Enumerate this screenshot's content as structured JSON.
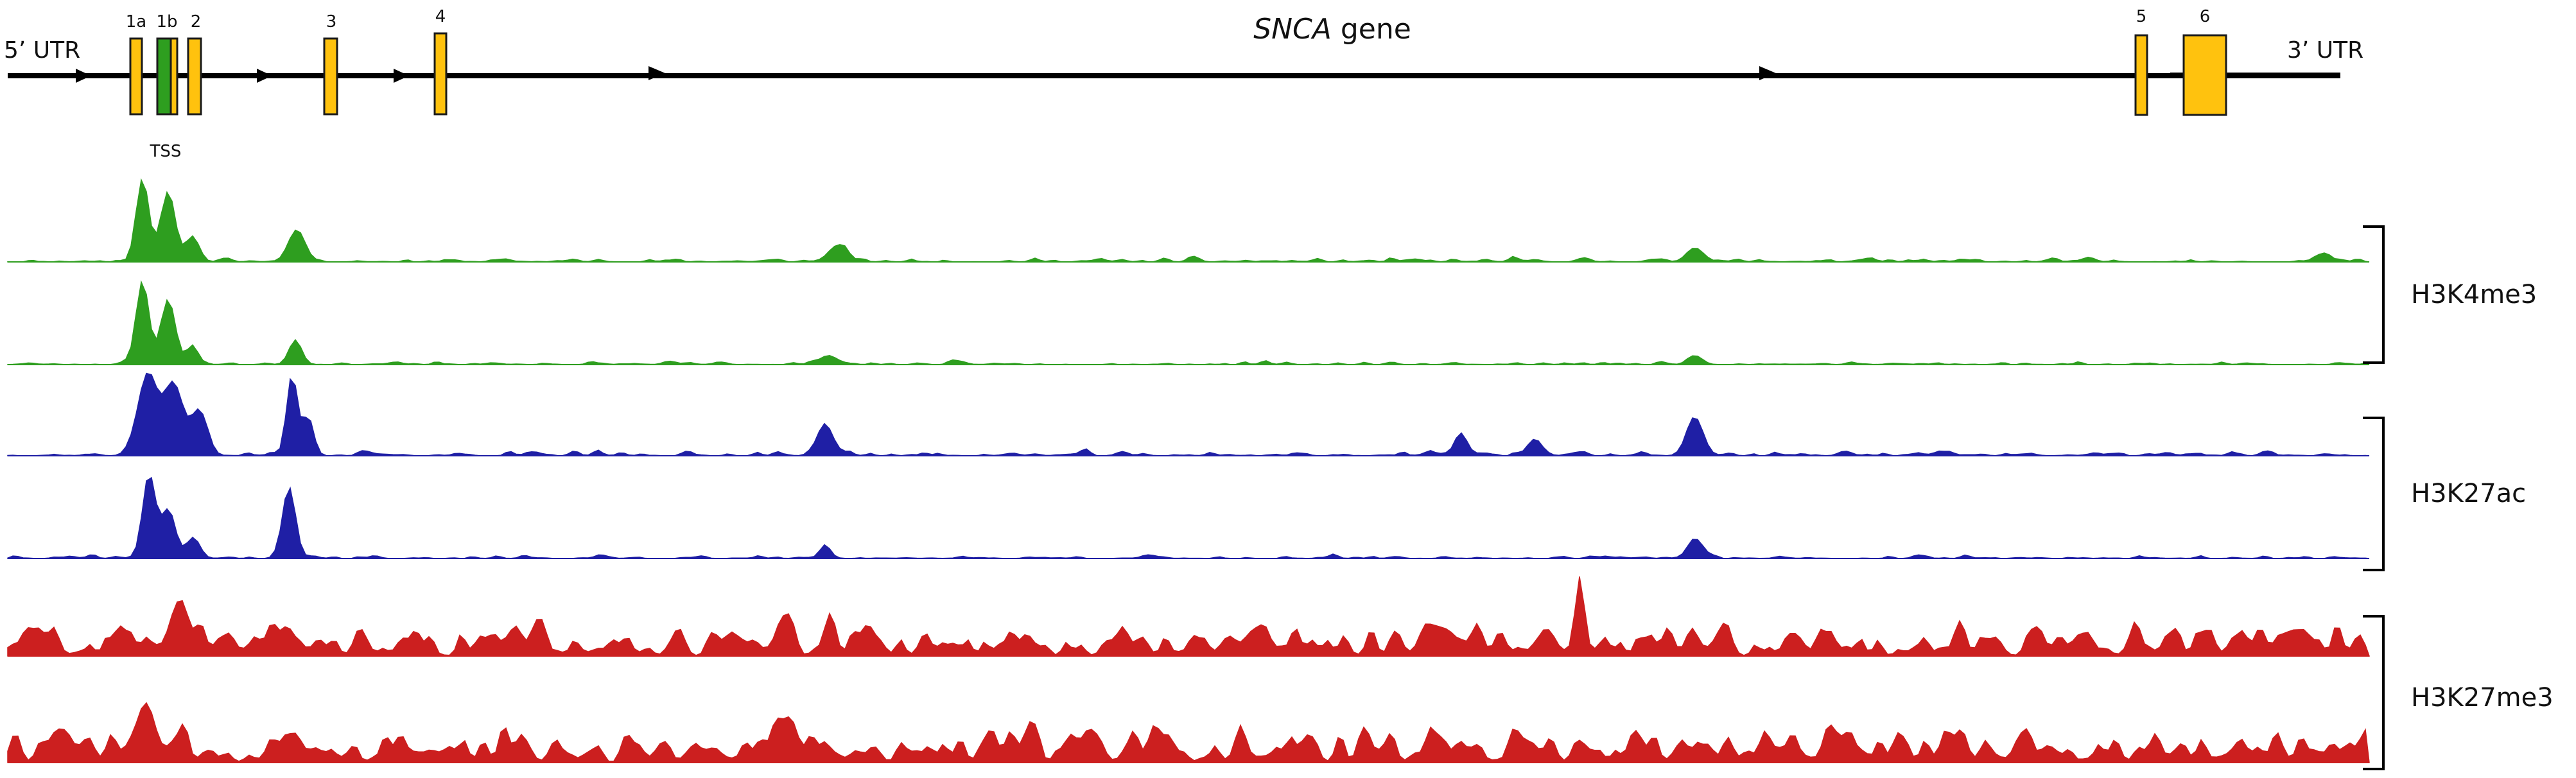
{
  "gene": {
    "name_italic": "SNCA",
    "name_rest": " gene",
    "left_label": "5’ UTR",
    "right_label": "3’ UTR",
    "tss_label": "TSS",
    "exons": [
      {
        "label": "1a"
      },
      {
        "label": "1b"
      },
      {
        "label": "2"
      },
      {
        "label": "3"
      },
      {
        "label": "4"
      },
      {
        "label": "5"
      },
      {
        "label": "6"
      }
    ]
  },
  "groups": [
    {
      "label": "H3K4me3",
      "color": "#2e9e1f"
    },
    {
      "label": "H3K27ac",
      "color": "#1f1fa5"
    },
    {
      "label": "H3K27me3",
      "color": "#cc1f1f"
    }
  ],
  "colors": {
    "exon": "#ffc20e",
    "exon_stroke": "#1a1a1a",
    "tss_exon": "#2e9e1f",
    "line": "#000000"
  }
}
